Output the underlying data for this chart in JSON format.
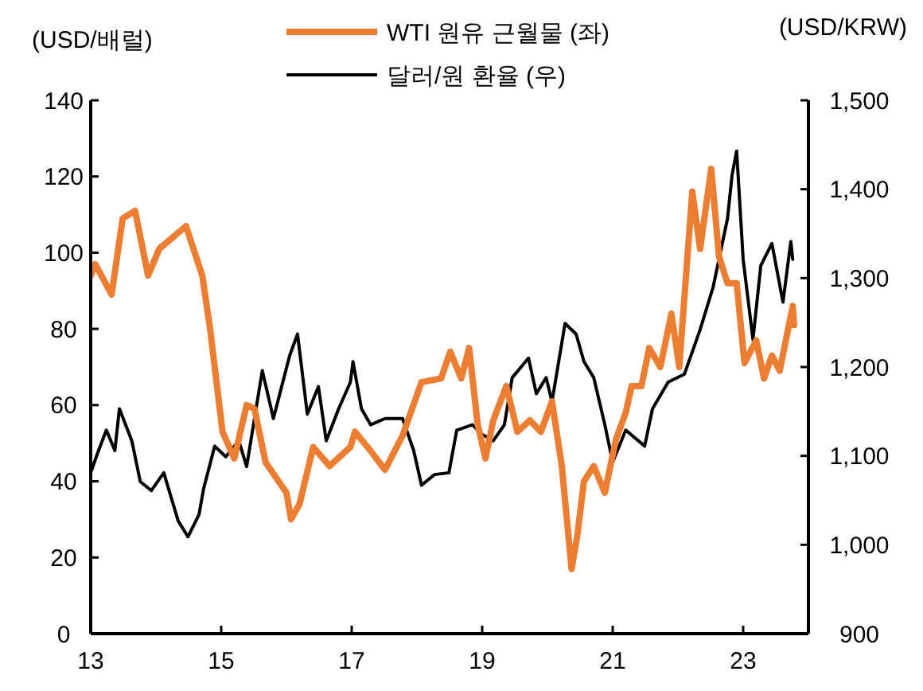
{
  "chart_data": {
    "type": "line",
    "ylabel": "(USD/배럴)",
    "y2label": "(USD/KRW)",
    "legend": "top",
    "grid": false,
    "xlim": [
      2013,
      2024
    ],
    "xticks": [
      {
        "value": 2013,
        "label": "13"
      },
      {
        "value": 2015,
        "label": "15"
      },
      {
        "value": 2017,
        "label": "17"
      },
      {
        "value": 2019,
        "label": "19"
      },
      {
        "value": 2021,
        "label": "21"
      },
      {
        "value": 2023,
        "label": "23"
      }
    ],
    "ylim": [
      0,
      140
    ],
    "yticks": [
      0,
      20,
      40,
      60,
      80,
      100,
      120,
      140
    ],
    "y2lim": [
      900,
      1500
    ],
    "y2ticks": [
      {
        "value": 900,
        "label": "900"
      },
      {
        "value": 1000,
        "label": "1,000"
      },
      {
        "value": 1100,
        "label": "1,100"
      },
      {
        "value": 1200,
        "label": "1,200"
      },
      {
        "value": 1300,
        "label": "1,300"
      },
      {
        "value": 1400,
        "label": "1,400"
      },
      {
        "value": 1500,
        "label": "1,500"
      }
    ],
    "series": [
      {
        "name": "WTI 원유 근월물 (좌)",
        "color": "#ed7d31",
        "axis": "y",
        "x": [
          2013.0,
          2013.07,
          2013.32,
          2013.49,
          2013.68,
          2013.88,
          2014.05,
          2014.46,
          2014.71,
          2014.83,
          2015.02,
          2015.2,
          2015.39,
          2015.51,
          2015.68,
          2016.0,
          2016.07,
          2016.2,
          2016.41,
          2016.66,
          2016.98,
          2017.05,
          2017.29,
          2017.51,
          2017.78,
          2018.07,
          2018.37,
          2018.51,
          2018.68,
          2018.8,
          2018.93,
          2019.05,
          2019.17,
          2019.37,
          2019.54,
          2019.73,
          2019.9,
          2020.07,
          2020.22,
          2020.37,
          2020.46,
          2020.56,
          2020.71,
          2020.88,
          2021.05,
          2021.2,
          2021.29,
          2021.44,
          2021.56,
          2021.73,
          2021.9,
          2022.02,
          2022.22,
          2022.34,
          2022.51,
          2022.63,
          2022.76,
          2022.9,
          2023.02,
          2023.2,
          2023.32,
          2023.44,
          2023.56,
          2023.76,
          2023.78
        ],
        "values": [
          94,
          97,
          89,
          109,
          111,
          94,
          101,
          107,
          94,
          80,
          53,
          46,
          60,
          59,
          45,
          37,
          30,
          34,
          49,
          44,
          49,
          53,
          48,
          43,
          52,
          66,
          67,
          74,
          67,
          75,
          55,
          46,
          56,
          65,
          53,
          56,
          53,
          61,
          44,
          17,
          26,
          40,
          44,
          37,
          51,
          58,
          65,
          65,
          75,
          70,
          84,
          70,
          116,
          101,
          122,
          99,
          92,
          92,
          71,
          77,
          67,
          73,
          69,
          86,
          81
        ]
      },
      {
        "name": "달러/원 환율 (우)",
        "color": "#000000",
        "axis": "y2",
        "x": [
          2013.0,
          2013.12,
          2013.24,
          2013.37,
          2013.44,
          2013.63,
          2013.76,
          2013.93,
          2014.12,
          2014.34,
          2014.49,
          2014.66,
          2014.73,
          2014.9,
          2015.07,
          2015.27,
          2015.39,
          2015.63,
          2015.8,
          2016.05,
          2016.17,
          2016.32,
          2016.49,
          2016.61,
          2016.8,
          2016.98,
          2017.02,
          2017.15,
          2017.29,
          2017.51,
          2017.78,
          2017.95,
          2018.07,
          2018.27,
          2018.49,
          2018.61,
          2018.85,
          2019.0,
          2019.17,
          2019.34,
          2019.46,
          2019.71,
          2019.83,
          2019.98,
          2020.07,
          2020.27,
          2020.44,
          2020.56,
          2020.71,
          2020.88,
          2021.0,
          2021.2,
          2021.49,
          2021.61,
          2021.85,
          2022.1,
          2022.34,
          2022.54,
          2022.76,
          2022.83,
          2022.9,
          2023.0,
          2023.15,
          2023.27,
          2023.44,
          2023.61,
          2023.73,
          2023.76
        ],
        "values": [
          1081,
          1106,
          1129,
          1106,
          1153,
          1117,
          1071,
          1061,
          1081,
          1027,
          1009,
          1034,
          1063,
          1111,
          1099,
          1117,
          1088,
          1196,
          1142,
          1213,
          1237,
          1147,
          1178,
          1117,
          1153,
          1183,
          1206,
          1153,
          1135,
          1142,
          1142,
          1106,
          1067,
          1079,
          1081,
          1129,
          1135,
          1124,
          1117,
          1135,
          1188,
          1210,
          1170,
          1188,
          1161,
          1249,
          1237,
          1206,
          1188,
          1135,
          1093,
          1129,
          1111,
          1153,
          1183,
          1192,
          1242,
          1290,
          1367,
          1416,
          1443,
          1321,
          1231,
          1314,
          1339,
          1273,
          1341,
          1321
        ]
      }
    ]
  }
}
